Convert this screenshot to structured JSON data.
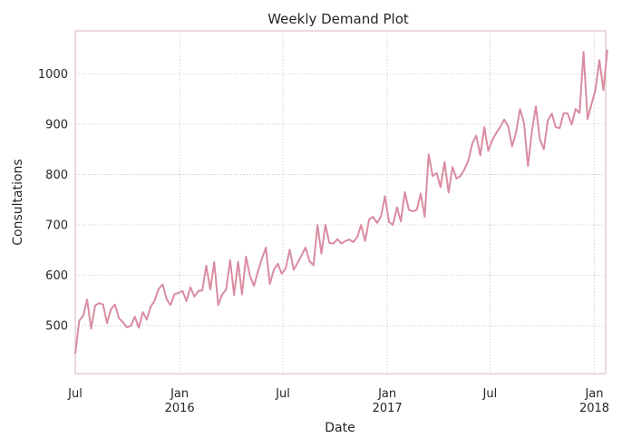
{
  "chart_data": {
    "type": "line",
    "title": "Weekly Demand Plot",
    "xlabel": "Date",
    "ylabel": "Consultations",
    "xlim": [
      "2015-07-01",
      "2018-01-21"
    ],
    "ylim": [
      405,
      1085
    ],
    "grid": true,
    "series_color": "#d98ca0",
    "frame_color": "#d9b3bd",
    "x_ticks": [
      {
        "date": "2015-07-01",
        "label": "Jul"
      },
      {
        "date": "2016-01-01",
        "label": "Jan\n2016"
      },
      {
        "date": "2016-07-01",
        "label": "Jul"
      },
      {
        "date": "2017-01-01",
        "label": "Jan\n2017"
      },
      {
        "date": "2017-07-01",
        "label": "Jul"
      },
      {
        "date": "2018-01-01",
        "label": "Jan\n2018"
      }
    ],
    "y_ticks": [
      500,
      600,
      700,
      800,
      900,
      1000
    ],
    "series": [
      {
        "start": "2015-07-01",
        "interval_days": 7,
        "values": [
          445,
          510,
          520,
          552,
          494,
          540,
          545,
          542,
          505,
          533,
          542,
          515,
          507,
          497,
          500,
          518,
          496,
          527,
          512,
          538,
          550,
          573,
          582,
          553,
          541,
          563,
          565,
          569,
          549,
          576,
          558,
          569,
          570,
          619,
          572,
          626,
          541,
          562,
          572,
          630,
          561,
          627,
          562,
          637,
          599,
          579,
          608,
          633,
          655,
          583,
          611,
          623,
          603,
          614,
          651,
          611,
          625,
          640,
          655,
          628,
          620,
          700,
          643,
          700,
          664,
          663,
          672,
          663,
          668,
          671,
          666,
          676,
          700,
          668,
          711,
          716,
          704,
          717,
          757,
          706,
          700,
          735,
          707,
          765,
          730,
          727,
          730,
          762,
          716,
          840,
          797,
          803,
          775,
          825,
          764,
          815,
          792,
          797,
          810,
          828,
          862,
          877,
          838,
          894,
          847,
          868,
          882,
          894,
          909,
          896,
          856,
          883,
          930,
          902,
          817,
          887,
          935,
          870,
          850,
          907,
          921,
          894,
          892,
          922,
          921,
          899,
          930,
          922,
          1043,
          910,
          940,
          968,
          1027,
          967,
          1048
        ]
      }
    ]
  }
}
